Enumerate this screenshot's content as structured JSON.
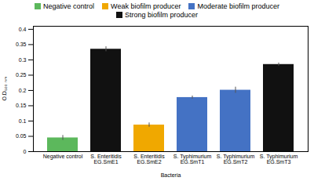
{
  "chart_data": {
    "type": "bar",
    "categories": [
      "Negative control",
      "S. Enteritidis\nEG.SmE1",
      "S. Enteritidis\nEG.SmE2",
      "S. Typhimurium\nEG.SmT1",
      "S. Typhimurium\nEG.SmT2",
      "S. Typhimurium\nEG.SmT3"
    ],
    "values": [
      0.045,
      0.335,
      0.087,
      0.177,
      0.201,
      0.285
    ],
    "errors": [
      0.008,
      0.008,
      0.007,
      0.005,
      0.01,
      0.005
    ],
    "colors": [
      "#5cb85c",
      "#111111",
      "#f0a800",
      "#4472c4",
      "#4472c4",
      "#111111"
    ],
    "xlabel": "Bacteria",
    "ylabel": "O.D₆₀₀ ₙₘ",
    "ylim": [
      0,
      0.41
    ],
    "yticks": [
      0,
      0.05,
      0.1,
      0.15,
      0.2,
      0.25,
      0.3,
      0.35,
      0.4
    ],
    "grid": false,
    "legend": "top",
    "legend_entries": [
      {
        "name": "Negative control",
        "color": "#5cb85c"
      },
      {
        "name": "Weak biofilm producer",
        "color": "#f0a800"
      },
      {
        "name": "Moderate biofilm producer",
        "color": "#4472c4"
      },
      {
        "name": "Strong biofilm producer",
        "color": "#111111"
      }
    ]
  }
}
